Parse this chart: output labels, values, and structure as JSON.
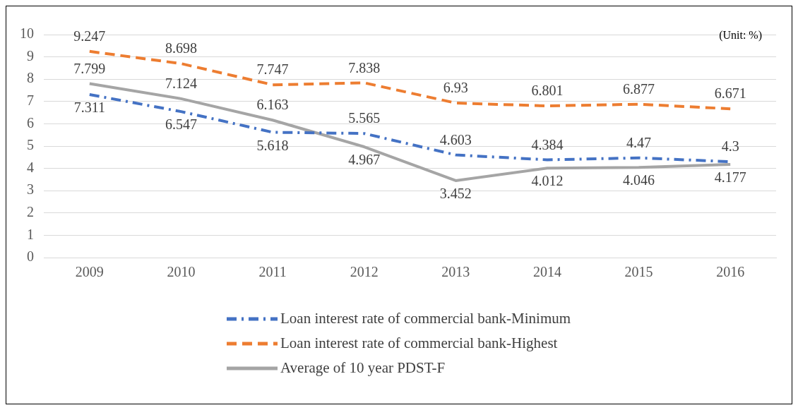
{
  "chart_data": {
    "type": "line",
    "categories": [
      "2009",
      "2010",
      "2011",
      "2012",
      "2013",
      "2014",
      "2015",
      "2016"
    ],
    "series": [
      {
        "name": "Loan interest rate of commercial bank-Minimum",
        "color": "#4472c4",
        "line_style": "dashdot",
        "values": [
          7.311,
          6.547,
          5.618,
          5.565,
          4.603,
          4.384,
          4.47,
          4.3
        ]
      },
      {
        "name": "Loan interest rate of commercial bank-Highest",
        "color": "#ed7d31",
        "line_style": "dashed",
        "values": [
          9.247,
          8.698,
          7.747,
          7.838,
          6.93,
          6.801,
          6.877,
          6.671
        ]
      },
      {
        "name": "Average of 10 year PDST-F",
        "color": "#a5a5a5",
        "line_style": "solid",
        "values": [
          7.799,
          7.124,
          6.163,
          4.967,
          3.452,
          4.012,
          4.046,
          4.177
        ]
      }
    ],
    "ylim": [
      0,
      10
    ],
    "yticks": [
      0,
      1,
      2,
      3,
      4,
      5,
      6,
      7,
      8,
      9,
      10
    ],
    "grid": "y",
    "legend": "bottom",
    "marker": "none",
    "data_labels": true,
    "annotations": [
      "(Unit: %)"
    ]
  }
}
